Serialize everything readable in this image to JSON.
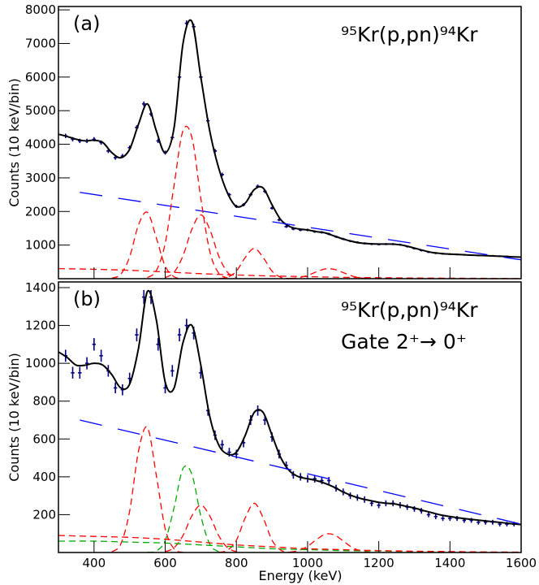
{
  "chart_data": [
    {
      "type": "line",
      "annotation_left": "(a)",
      "annotation_right": "⁹⁵Kr(p,pn)⁹⁴Kr",
      "y_label": "Counts (10 keV/bin)",
      "xlim": [
        300,
        1600
      ],
      "ylim": [
        0,
        8100
      ],
      "xticks": [
        400,
        600,
        800,
        1000,
        1200,
        1400,
        1600
      ],
      "xtick_labels": false,
      "yticks": [
        1000,
        2000,
        3000,
        4000,
        5000,
        6000,
        7000,
        8000
      ],
      "series": [
        {
          "style": "points",
          "color": "#000080",
          "x": [
            320,
            340,
            360,
            380,
            400,
            420,
            440,
            460,
            480,
            500,
            520,
            540,
            560,
            580,
            600,
            620,
            640,
            660,
            680,
            700,
            720,
            740,
            760,
            780,
            800,
            820,
            840,
            860,
            880,
            900,
            920,
            940,
            960,
            980,
            1000,
            1020,
            1040,
            1060,
            1080,
            1100,
            1120,
            1140,
            1160,
            1180,
            1200,
            1220,
            1240,
            1260,
            1280,
            1300,
            1320,
            1340,
            1360,
            1380,
            1400,
            1420,
            1440,
            1460,
            1480,
            1500,
            1520,
            1540,
            1560
          ],
          "values": [
            4250,
            4150,
            4100,
            4100,
            4150,
            4050,
            3800,
            3600,
            3650,
            3900,
            4500,
            5200,
            4900,
            4100,
            3750,
            4200,
            6000,
            7600,
            7500,
            6000,
            4700,
            3800,
            3100,
            2500,
            2150,
            2200,
            2500,
            2750,
            2600,
            2100,
            1750,
            1550,
            1480,
            1450,
            1450,
            1400,
            1380,
            1330,
            1250,
            1180,
            1120,
            1080,
            1050,
            1030,
            1020,
            1030,
            1030,
            1010,
            960,
            900,
            840,
            790,
            760,
            740,
            730,
            720,
            710,
            700,
            690,
            690,
            680,
            670,
            660
          ],
          "errors": [
            65,
            64,
            64,
            64,
            64,
            64,
            62,
            60,
            60,
            62,
            67,
            72,
            70,
            64,
            61,
            65,
            77,
            87,
            87,
            77,
            69,
            62,
            56,
            50,
            46,
            47,
            50,
            52,
            51,
            46,
            42,
            39,
            38,
            38,
            38,
            37,
            37,
            36,
            35,
            34,
            33,
            33,
            32,
            32,
            32,
            32,
            32,
            32,
            31,
            30,
            29,
            28,
            28,
            27,
            27,
            27,
            27,
            26,
            26,
            26,
            26,
            26,
            26
          ]
        },
        {
          "style": "solid",
          "color": "#000000",
          "x": [
            300,
            325,
            350,
            375,
            400,
            425,
            450,
            475,
            500,
            525,
            550,
            575,
            600,
            625,
            650,
            675,
            700,
            725,
            750,
            775,
            800,
            825,
            850,
            875,
            900,
            925,
            950,
            975,
            1000,
            1025,
            1050,
            1075,
            1100,
            1125,
            1150,
            1175,
            1200,
            1225,
            1250,
            1275,
            1300,
            1325,
            1350,
            1375,
            1400,
            1425,
            1450,
            1475,
            1500,
            1525,
            1550,
            1575,
            1600
          ],
          "values": [
            4300,
            4230,
            4150,
            4100,
            4120,
            4050,
            3750,
            3600,
            3850,
            4600,
            5200,
            4400,
            3750,
            4500,
            7000,
            7650,
            6000,
            4400,
            3300,
            2550,
            2150,
            2250,
            2650,
            2700,
            2200,
            1750,
            1550,
            1480,
            1450,
            1400,
            1360,
            1270,
            1180,
            1110,
            1060,
            1040,
            1030,
            1030,
            1020,
            980,
            910,
            840,
            780,
            750,
            730,
            720,
            705,
            695,
            685,
            675,
            665,
            650,
            640
          ]
        },
        {
          "style": "dashed",
          "color": "#0000ff",
          "x": [
            360,
            1600
          ],
          "values": [
            2570,
            560
          ]
        },
        {
          "style": "dashed",
          "color": "#ff0000",
          "x": [
            450,
            475,
            500,
            525,
            550,
            575,
            600,
            625,
            650
          ],
          "values": [
            13,
            131,
            649,
            1601,
            1972,
            1213,
            373,
            57,
            4
          ]
        },
        {
          "style": "dashed",
          "color": "#ff0000",
          "x": [
            550,
            575,
            600,
            625,
            650,
            675,
            700,
            725,
            750,
            775
          ],
          "values": [
            33,
            241,
            1058,
            2790,
            4410,
            4200,
            2395,
            820,
            170,
            21
          ]
        },
        {
          "style": "dashed",
          "color": "#ff0000",
          "x": [
            600,
            625,
            650,
            675,
            700,
            725,
            750,
            775,
            800
          ],
          "values": [
            32,
            190,
            684,
            1472,
            1900,
            1472,
            684,
            190,
            32
          ]
        },
        {
          "style": "dashed",
          "color": "#ff0000",
          "x": [
            750,
            775,
            800,
            825,
            850,
            875,
            900,
            925,
            950
          ],
          "values": [
            4,
            40,
            225,
            635,
            900,
            635,
            225,
            40,
            4
          ]
        },
        {
          "style": "dashed",
          "color": "#ff0000",
          "x": [
            950,
            975,
            1000,
            1025,
            1050,
            1075,
            1100,
            1125,
            1150,
            1175
          ],
          "values": [
            7,
            31,
            97,
            205,
            291,
            279,
            182,
            80,
            24,
            5
          ]
        },
        {
          "style": "dashed",
          "color": "#ff0000",
          "x": [
            300,
            400,
            500,
            600,
            700,
            800,
            900,
            1000,
            1100,
            1200,
            1300,
            1400,
            1500,
            1600
          ],
          "values": [
            300,
            280,
            250,
            200,
            150,
            110,
            80,
            60,
            40,
            30,
            20,
            15,
            10,
            5
          ]
        }
      ]
    },
    {
      "type": "line",
      "annotation_left": "(b)",
      "annotation_right": "⁹⁵Kr(p,pn)⁹⁴Kr",
      "annotation_right2": "Gate 2⁺→ 0⁺",
      "y_label": "Counts (10 keV/bin)",
      "x_label": "Energy (keV)",
      "xlim": [
        300,
        1600
      ],
      "ylim": [
        0,
        1430
      ],
      "xticks": [
        400,
        600,
        800,
        1000,
        1200,
        1400,
        1600
      ],
      "xtick_labels": true,
      "yticks": [
        200,
        400,
        600,
        800,
        1000,
        1200,
        1400
      ],
      "series": [
        {
          "style": "points",
          "color": "#000080",
          "x": [
            320,
            340,
            360,
            380,
            400,
            420,
            440,
            460,
            480,
            500,
            520,
            540,
            560,
            580,
            600,
            620,
            640,
            660,
            680,
            700,
            720,
            740,
            760,
            780,
            800,
            820,
            840,
            860,
            880,
            900,
            920,
            940,
            960,
            980,
            1000,
            1020,
            1040,
            1060,
            1080,
            1100,
            1120,
            1140,
            1160,
            1180,
            1200,
            1220,
            1240,
            1260,
            1280,
            1300,
            1320,
            1340,
            1360,
            1380,
            1400,
            1420,
            1440,
            1460,
            1480,
            1500,
            1520,
            1540,
            1560,
            1580
          ],
          "values": [
            1040,
            950,
            950,
            1000,
            1100,
            1040,
            960,
            870,
            860,
            920,
            1150,
            1350,
            1350,
            1100,
            870,
            960,
            1150,
            1200,
            1160,
            950,
            750,
            620,
            570,
            530,
            520,
            580,
            700,
            750,
            700,
            610,
            520,
            460,
            410,
            400,
            390,
            390,
            380,
            380,
            340,
            320,
            300,
            290,
            280,
            260,
            250,
            260,
            260,
            250,
            240,
            230,
            220,
            200,
            190,
            180,
            180,
            180,
            170,
            170,
            160,
            160,
            160,
            150,
            150,
            150
          ],
          "errors": [
            32,
            31,
            31,
            32,
            33,
            32,
            31,
            29,
            29,
            30,
            34,
            37,
            37,
            33,
            29,
            31,
            34,
            35,
            34,
            31,
            27,
            25,
            24,
            23,
            23,
            24,
            26,
            27,
            26,
            25,
            23,
            21,
            20,
            20,
            20,
            20,
            19,
            19,
            18,
            18,
            17,
            17,
            17,
            16,
            16,
            16,
            16,
            16,
            15,
            15,
            15,
            14,
            14,
            13,
            13,
            13,
            13,
            13,
            13,
            13,
            13,
            12,
            12,
            12
          ]
        },
        {
          "style": "solid",
          "color": "#000000",
          "x": [
            300,
            325,
            350,
            375,
            400,
            425,
            450,
            475,
            500,
            525,
            550,
            575,
            600,
            625,
            650,
            675,
            700,
            725,
            750,
            775,
            800,
            825,
            850,
            875,
            900,
            925,
            950,
            975,
            1000,
            1025,
            1050,
            1075,
            1100,
            1125,
            1150,
            1175,
            1200,
            1225,
            1250,
            1275,
            1300,
            1325,
            1350,
            1375,
            1400,
            1425,
            1450,
            1475,
            1500,
            1525,
            1550,
            1575,
            1600
          ],
          "values": [
            1060,
            1030,
            990,
            990,
            1000,
            990,
            940,
            870,
            890,
            1080,
            1380,
            1230,
            900,
            870,
            1110,
            1200,
            990,
            720,
            570,
            520,
            530,
            620,
            740,
            740,
            620,
            500,
            430,
            400,
            390,
            380,
            365,
            345,
            320,
            300,
            285,
            275,
            265,
            260,
            255,
            245,
            235,
            222,
            210,
            198,
            190,
            183,
            177,
            172,
            167,
            162,
            157,
            152,
            148
          ]
        },
        {
          "style": "dashed",
          "color": "#0000ff",
          "x": [
            360,
            1600
          ],
          "values": [
            700,
            150
          ]
        },
        {
          "style": "dashed",
          "color": "#ff0000",
          "x": [
            450,
            475,
            500,
            525,
            550,
            575,
            600,
            625,
            650
          ],
          "values": [
            4,
            44,
            218,
            536,
            661,
            407,
            125,
            19,
            1
          ]
        },
        {
          "style": "dashed",
          "color": "#00aa00",
          "x": [
            550,
            575,
            600,
            625,
            650,
            675,
            700,
            725,
            750,
            775
          ],
          "values": [
            1,
            8,
            64,
            238,
            444,
            413,
            193,
            45,
            5,
            0
          ]
        },
        {
          "style": "dashed",
          "color": "#ff0000",
          "x": [
            600,
            625,
            650,
            675,
            700,
            725,
            750,
            775,
            800
          ],
          "values": [
            4,
            25,
            90,
            194,
            250,
            194,
            90,
            25,
            4
          ]
        },
        {
          "style": "dashed",
          "color": "#ff0000",
          "x": [
            750,
            775,
            800,
            825,
            850,
            875,
            900,
            925,
            950
          ],
          "values": [
            1,
            12,
            65,
            184,
            260,
            184,
            65,
            12,
            1
          ]
        },
        {
          "style": "dashed",
          "color": "#ff0000",
          "x": [
            950,
            975,
            1000,
            1025,
            1050,
            1075,
            1100,
            1125,
            1150,
            1175
          ],
          "values": [
            2,
            10,
            33,
            68,
            97,
            93,
            61,
            27,
            8,
            2
          ]
        },
        {
          "style": "dashed",
          "color": "#00aa00",
          "x": [
            300,
            400,
            500,
            600,
            700,
            800,
            900,
            1000,
            1100,
            1200,
            1300,
            1400,
            1500,
            1600
          ],
          "values": [
            60,
            60,
            55,
            50,
            40,
            30,
            20,
            15,
            10,
            8,
            5,
            3,
            2,
            1
          ]
        },
        {
          "style": "dashed",
          "color": "#ff0000",
          "x": [
            300,
            400,
            500,
            600,
            700,
            800,
            900,
            1000,
            1100,
            1200,
            1300,
            1400,
            1500,
            1600
          ],
          "values": [
            90,
            85,
            80,
            70,
            55,
            40,
            30,
            20,
            15,
            10,
            7,
            5,
            3,
            2
          ]
        }
      ]
    }
  ]
}
